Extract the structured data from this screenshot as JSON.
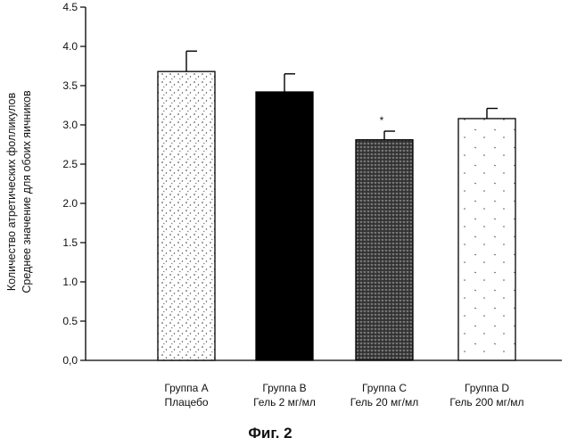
{
  "chart_data": {
    "type": "bar",
    "categories": [
      [
        "Группа А",
        "Плацебо"
      ],
      [
        "Группа В",
        "Гель 2 мг/мл"
      ],
      [
        "Группа С",
        "Гель 20 мг/мл"
      ],
      [
        "Группа D",
        "Гель 200 мг/мл"
      ]
    ],
    "values": [
      3.68,
      3.42,
      2.81,
      3.08
    ],
    "errors": [
      0.26,
      0.23,
      0.11,
      0.13
    ],
    "significance": [
      "",
      "",
      "*",
      ""
    ],
    "fills": [
      "sparse-dots",
      "solid-black",
      "dense-dots",
      "very-sparse-dots"
    ],
    "ylabel_lines": [
      "Количество атретических фолликулов",
      "Среднее значение для обоих яичников"
    ],
    "xlabel": "",
    "ylim": [
      0,
      4.5
    ],
    "yticks": [
      "0,0",
      "0.5",
      "1.0",
      "1.5",
      "2.0",
      "2.5",
      "3.0",
      "3.5",
      "4.0",
      "4.5"
    ],
    "grid": false,
    "legend": "none",
    "colors": {
      "bar_edge": "#000000",
      "axis": "#000000",
      "background": "#ffffff"
    }
  },
  "caption": "Фиг. 2"
}
